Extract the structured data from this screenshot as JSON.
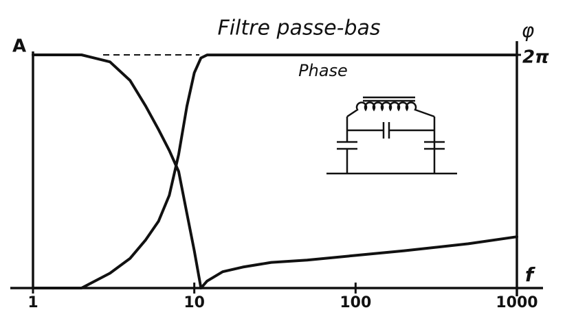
{
  "chart_data": {
    "type": "line",
    "title": "Filtre passe-bas",
    "x_label": "f",
    "y2_label": "φ",
    "x": [
      1,
      2,
      3,
      4,
      5,
      6,
      7,
      8,
      9,
      10,
      11,
      12,
      15,
      20,
      30,
      50,
      100,
      200,
      500,
      1000
    ],
    "series": [
      {
        "name": "A",
        "color": "#111111",
        "values": [
          1,
          1,
          0.97,
          0.89,
          0.78,
          0.68,
          0.59,
          0.5,
          0.32,
          0.16,
          0,
          0.03,
          0.07,
          0.09,
          0.11,
          0.12,
          0.14,
          0.16,
          0.19,
          0.22
        ]
      },
      {
        "name": "Phase",
        "color": "#111111",
        "axis": "y2",
        "values": [
          0,
          0,
          0.4,
          0.8,
          1.3,
          1.8,
          2.5,
          3.6,
          4.9,
          5.8,
          6.2,
          6.28,
          6.28,
          6.28,
          6.28,
          6.28,
          6.28,
          6.28,
          6.28,
          6.28
        ]
      }
    ],
    "xscale": "log",
    "xlim": [
      1,
      1000
    ],
    "xticks": [
      1,
      10,
      100,
      1000
    ],
    "ylim": [
      0,
      1
    ],
    "y2lim": [
      0,
      6.283
    ],
    "y2ticks": [
      {
        "value": 6.283,
        "label": "2π"
      }
    ]
  }
}
